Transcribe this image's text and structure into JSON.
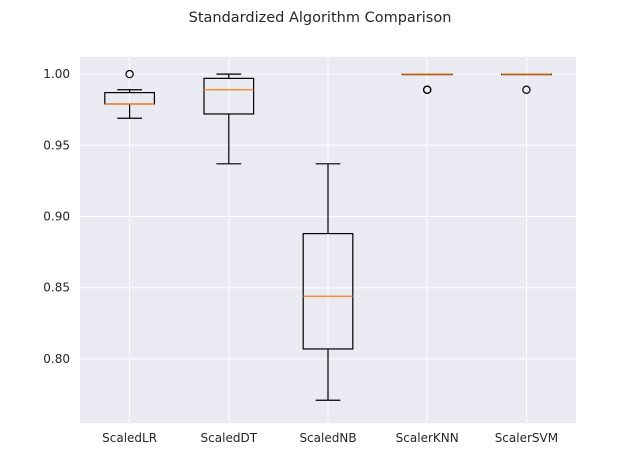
{
  "chart_data": {
    "type": "box",
    "title": "Standardized Algorithm Comparison",
    "xlabel": "",
    "ylabel": "",
    "ylim": [
      0.755,
      1.012
    ],
    "yticks": [
      0.8,
      0.85,
      0.9,
      0.95,
      1.0
    ],
    "ytick_labels": [
      "0.80",
      "0.85",
      "0.90",
      "0.95",
      "1.00"
    ],
    "grid": true,
    "colors": {
      "background": "#eaeaf2",
      "grid": "#ffffff",
      "box_edge": "#000000",
      "median": "#ff7f0e"
    },
    "categories": [
      "ScaledLR",
      "ScaledDT",
      "ScaledNB",
      "ScalerKNN",
      "ScalerSVM"
    ],
    "boxes": [
      {
        "name": "ScaledLR",
        "whisker_low": 0.969,
        "q1": 0.979,
        "median": 0.979,
        "q3": 0.987,
        "whisker_high": 0.989,
        "fliers": [
          1.0
        ]
      },
      {
        "name": "ScaledDT",
        "whisker_low": 0.937,
        "q1": 0.972,
        "median": 0.989,
        "q3": 0.997,
        "whisker_high": 1.0,
        "fliers": []
      },
      {
        "name": "ScaledNB",
        "whisker_low": 0.771,
        "q1": 0.807,
        "median": 0.844,
        "q3": 0.888,
        "whisker_high": 0.937,
        "fliers": []
      },
      {
        "name": "ScalerKNN",
        "whisker_low": 1.0,
        "q1": 1.0,
        "median": 1.0,
        "q3": 1.0,
        "whisker_high": 1.0,
        "fliers": [
          0.989,
          0.989
        ]
      },
      {
        "name": "ScalerSVM",
        "whisker_low": 1.0,
        "q1": 1.0,
        "median": 1.0,
        "q3": 1.0,
        "whisker_high": 1.0,
        "fliers": [
          0.989
        ]
      }
    ]
  }
}
